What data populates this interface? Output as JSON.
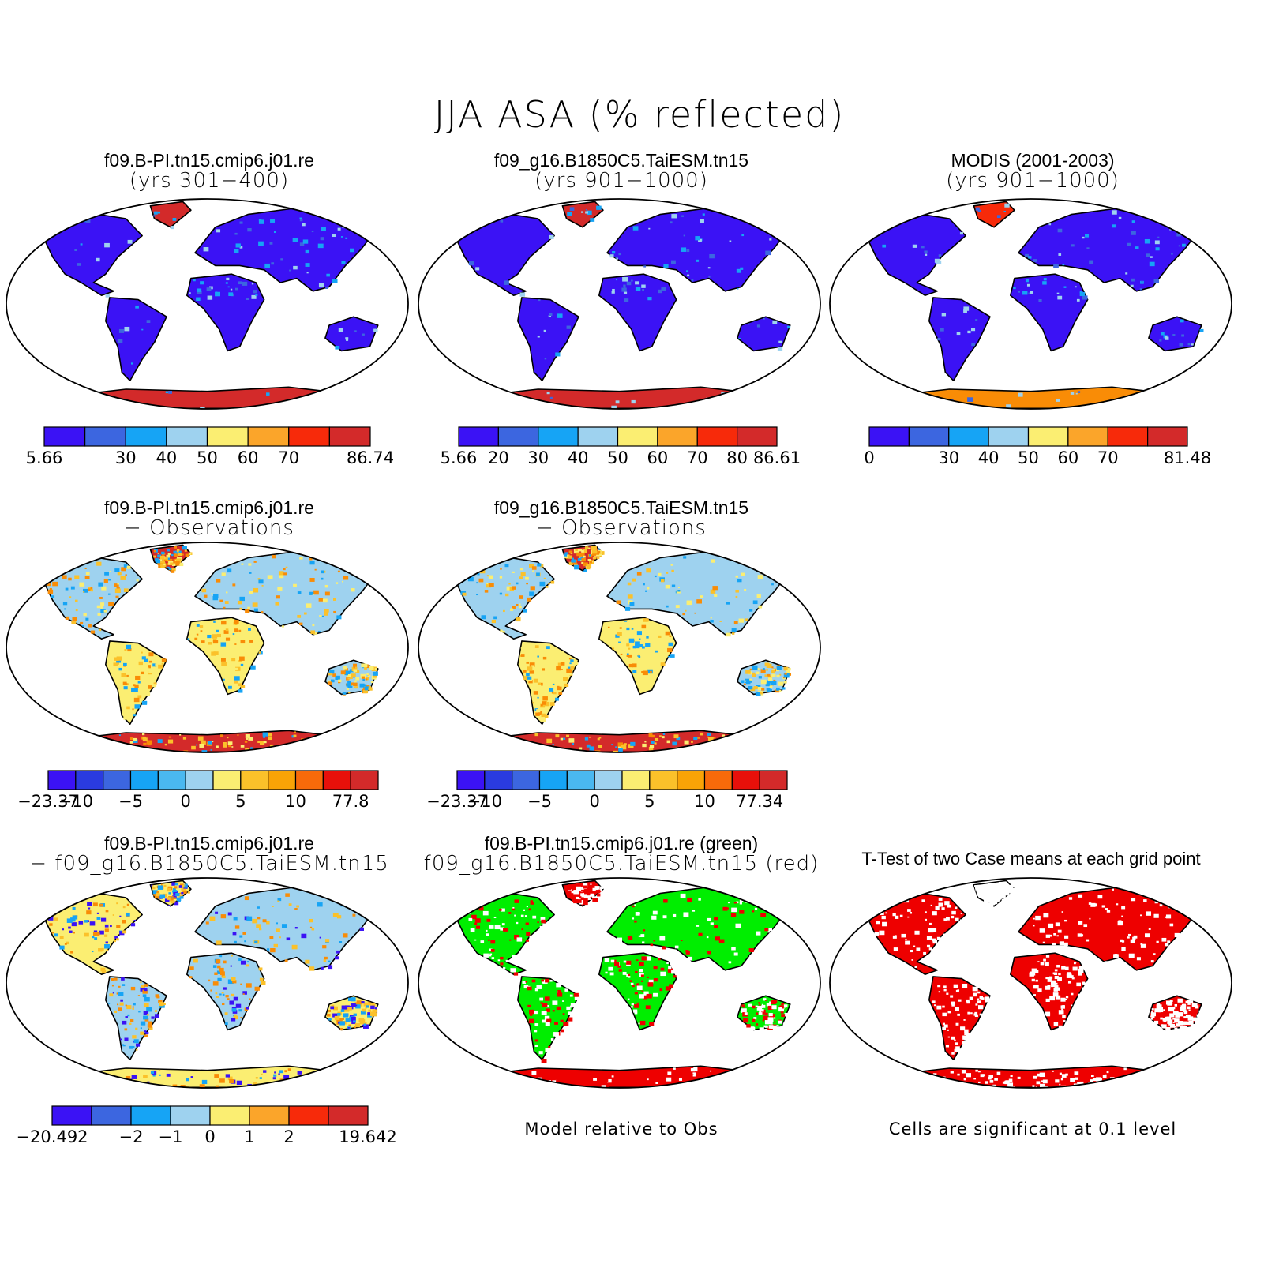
{
  "title": "JJA ASA (% reflected)",
  "palette_abs": [
    "#3b12f5",
    "#3c66e0",
    "#16a4f5",
    "#9ed2ef",
    "#fbee72",
    "#fbc12a",
    "#f98c06",
    "#f72a0a",
    "#d32a2a"
  ],
  "panels": [
    {
      "line1": "f09.B-PI.tn15.cmip6.j01.re",
      "line2": "(yrs 301−400)",
      "style": "abs",
      "colorbar": {
        "colors": [
          "#3b12f5",
          "#3c66e0",
          "#16a4f5",
          "#9ed2ef",
          "#fbee72",
          "#fba52a",
          "#f72a0a",
          "#d32a2a"
        ],
        "labels": [
          "5.66",
          "",
          "30",
          "40",
          "50",
          "60",
          "70",
          "",
          "86.74"
        ]
      }
    },
    {
      "line1": "f09_g16.B1850C5.TaiESM.tn15",
      "line2": "(yrs 901−1000)",
      "style": "abs",
      "colorbar": {
        "colors": [
          "#3b12f5",
          "#3c66e0",
          "#16a4f5",
          "#9ed2ef",
          "#fbee72",
          "#fba52a",
          "#f72a0a",
          "#d32a2a"
        ],
        "labels": [
          "5.66",
          "20",
          "30",
          "40",
          "50",
          "60",
          "70",
          "80",
          "86.61"
        ]
      }
    },
    {
      "line1": "MODIS (2001-2003)",
      "line2": "(yrs 901−1000)",
      "style": "abs_obs",
      "colorbar": {
        "colors": [
          "#3b12f5",
          "#3c66e0",
          "#16a4f5",
          "#9ed2ef",
          "#fbee72",
          "#fba52a",
          "#f72a0a",
          "#d32a2a"
        ],
        "labels": [
          "0",
          "",
          "30",
          "40",
          "50",
          "60",
          "70",
          "",
          "81.48"
        ]
      }
    },
    {
      "line1": "f09.B-PI.tn15.cmip6.j01.re",
      "line2": "− Observations",
      "style": "diff",
      "colorbar": {
        "colors": [
          "#3b12f5",
          "#2a3be0",
          "#3c66e0",
          "#16a4f5",
          "#4ab8f0",
          "#9ed2ef",
          "#fbee72",
          "#fbc12a",
          "#f9a306",
          "#f76a0a",
          "#e8100a",
          "#d32a2a"
        ],
        "labels": [
          "−23.37",
          "−10",
          "",
          "−5",
          "",
          "0",
          "",
          "5",
          "",
          "10",
          "",
          "77.8"
        ]
      }
    },
    {
      "line1": "f09_g16.B1850C5.TaiESM.tn15",
      "line2": "− Observations",
      "style": "diff",
      "colorbar": {
        "colors": [
          "#3b12f5",
          "#2a3be0",
          "#3c66e0",
          "#16a4f5",
          "#4ab8f0",
          "#9ed2ef",
          "#fbee72",
          "#fbc12a",
          "#f9a306",
          "#f76a0a",
          "#e8100a",
          "#d32a2a"
        ],
        "labels": [
          "−23.37",
          "−10",
          "",
          "−5",
          "",
          "0",
          "",
          "5",
          "",
          "10",
          "",
          "77.34"
        ]
      }
    },
    {
      "line1": "f09.B-PI.tn15.cmip6.j01.re",
      "line2": "− f09_g16.B1850C5.TaiESM.tn15",
      "style": "case_diff",
      "colorbar": {
        "colors": [
          "#3b12f5",
          "#3c66e0",
          "#16a4f5",
          "#9ed2ef",
          "#fbee72",
          "#fba52a",
          "#f72a0a",
          "#d32a2a"
        ],
        "labels": [
          "−20.492",
          "",
          "−2",
          "−1",
          "0",
          "1",
          "2",
          "",
          "19.642"
        ]
      }
    },
    {
      "line1": "f09.B-PI.tn15.cmip6.j01.re (green)",
      "line2": "f09_g16.B1850C5.TaiESM.tn15 (red)",
      "style": "greenred",
      "note": "Model relative to Obs"
    },
    {
      "line1": "T-Test of two Case means at each grid point",
      "line2": "",
      "style": "ttest",
      "note": "Cells are significant at 0.1 level"
    }
  ]
}
